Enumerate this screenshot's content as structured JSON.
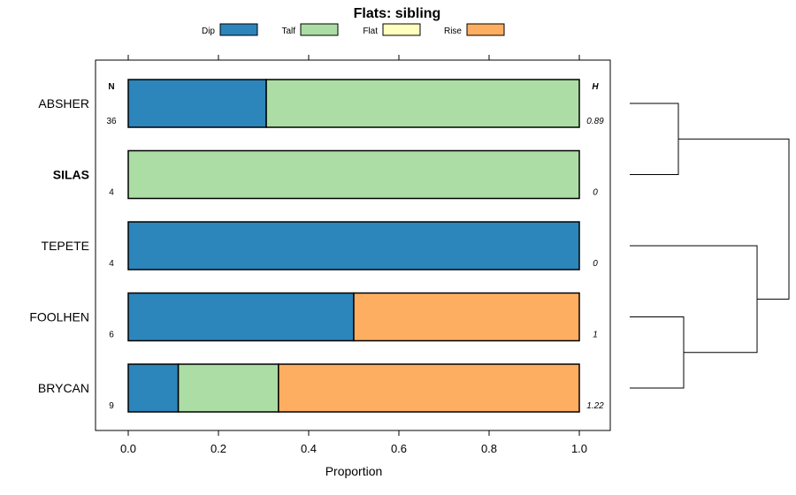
{
  "chart_data": {
    "type": "bar",
    "orientation": "horizontal",
    "stacked": true,
    "title": "Flats: sibling",
    "xlabel": "Proportion",
    "ylabel": "",
    "xlim": [
      0,
      1
    ],
    "xticks": [
      "0.0",
      "0.2",
      "0.4",
      "0.6",
      "0.8",
      "1.0"
    ],
    "xtick_values": [
      0,
      0.2,
      0.4,
      0.6,
      0.8,
      1.0
    ],
    "legend_position": "top",
    "legend": [
      {
        "name": "Dip",
        "color": "#2c85bb"
      },
      {
        "name": "Talf",
        "color": "#abdda4"
      },
      {
        "name": "Flat",
        "color": "#ffffbf"
      },
      {
        "name": "Rise",
        "color": "#fdae61"
      }
    ],
    "n_header": "N",
    "h_header": "H",
    "categories": [
      "ABSHER",
      "SILAS",
      "TEPETE",
      "FOOLHEN",
      "BRYCAN"
    ],
    "bold_categories": [
      "SILAS"
    ],
    "n_values": [
      "36",
      "4",
      "4",
      "6",
      "9"
    ],
    "h_values": [
      "0.89",
      "0",
      "0",
      "1",
      "1.22"
    ],
    "series": [
      {
        "name": "Dip",
        "values": [
          0.306,
          0,
          1.0,
          0.5,
          0.111
        ]
      },
      {
        "name": "Talf",
        "values": [
          0.694,
          1.0,
          0,
          0,
          0.222
        ]
      },
      {
        "name": "Flat",
        "values": [
          0,
          0,
          0,
          0,
          0
        ]
      },
      {
        "name": "Rise",
        "values": [
          0,
          0,
          0,
          0.5,
          0.667
        ]
      }
    ],
    "dendrogram": {
      "merges": [
        [
          0,
          1
        ],
        [
          3,
          4
        ],
        [
          2,
          "m2"
        ],
        [
          "m1",
          "m3"
        ]
      ]
    }
  }
}
